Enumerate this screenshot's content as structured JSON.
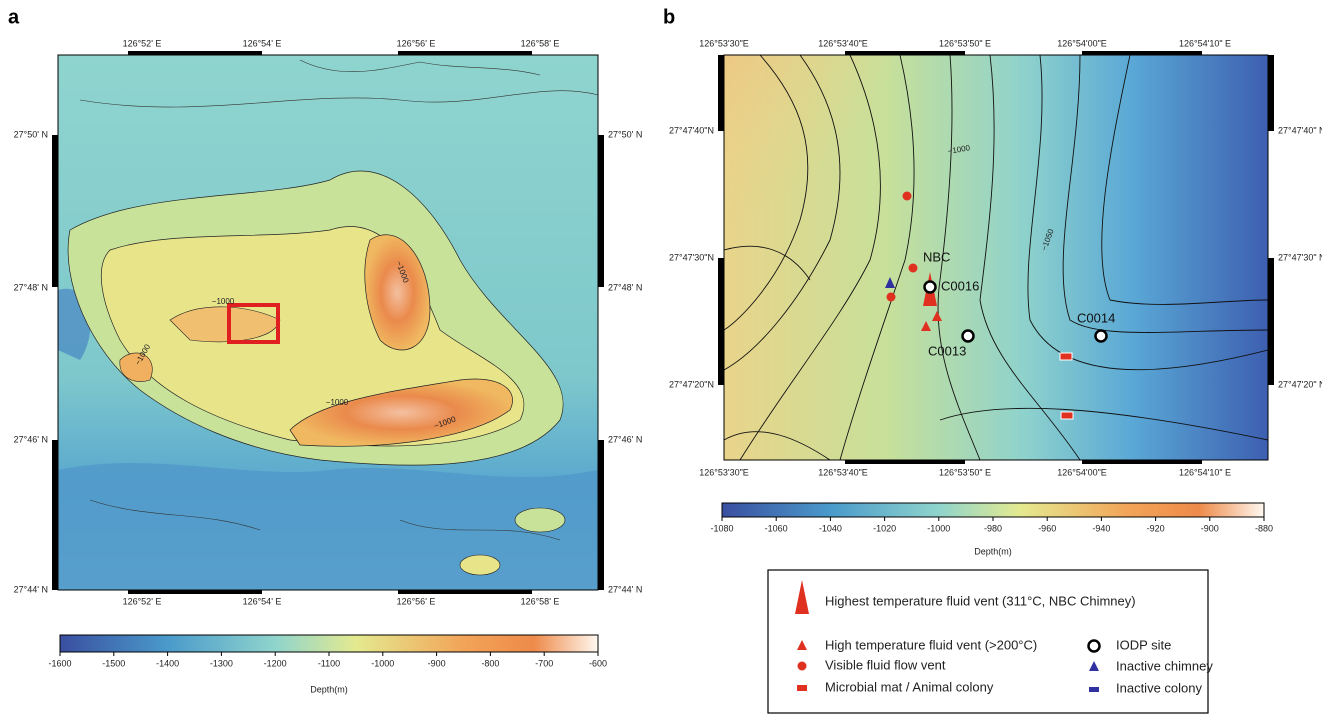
{
  "panel_a": {
    "label": "a",
    "lon_labels": [
      "126°52' E",
      "126°54' E",
      "126°56' E",
      "126°58' E"
    ],
    "lat_labels": [
      "27°50' N",
      "27°48' N",
      "27°46' N",
      "27°44' N"
    ],
    "contour_labels": [
      "−1000",
      "−1000",
      "−1000",
      "−1000",
      "−1000"
    ],
    "colorbar": {
      "label": "Depth(m)",
      "range": [
        -1600,
        -600
      ],
      "ticks": [
        -1600,
        -1500,
        -1400,
        -1300,
        -1200,
        -1100,
        -1000,
        -900,
        -800,
        -700,
        -600
      ]
    }
  },
  "panel_b": {
    "label": "b",
    "lon_labels": [
      "126°53'30\"E",
      "126°53'40\"E",
      "126°53'50\" E",
      "126°54'00\"E",
      "126°54'10\" E"
    ],
    "lat_labels_left": [
      "27°47'40\"N",
      "27°47'30\"N",
      "27°47'20\"N"
    ],
    "lat_labels_right": [
      "27°47'40\" N",
      "27°47'30\" N",
      "27°47'20\" N"
    ],
    "contour_labels": [
      "−1000",
      "−1050"
    ],
    "sites": [
      "NBC",
      "C0016",
      "C0013",
      "C0014"
    ],
    "colorbar": {
      "label": "Depth(m)",
      "range": [
        -1080,
        -880
      ],
      "ticks": [
        -1080,
        -1060,
        -1040,
        -1020,
        -1000,
        -980,
        -960,
        -940,
        -920,
        -900,
        -880
      ]
    }
  },
  "legend": {
    "items": [
      "Highest temperature fluid vent (311°C, NBC Chimney)",
      "High temperature fluid vent (>200°C)",
      "Visible fluid flow vent",
      "Microbial mat / Animal colony",
      "IODP site",
      "Inactive chimney",
      "Inactive colony"
    ]
  }
}
